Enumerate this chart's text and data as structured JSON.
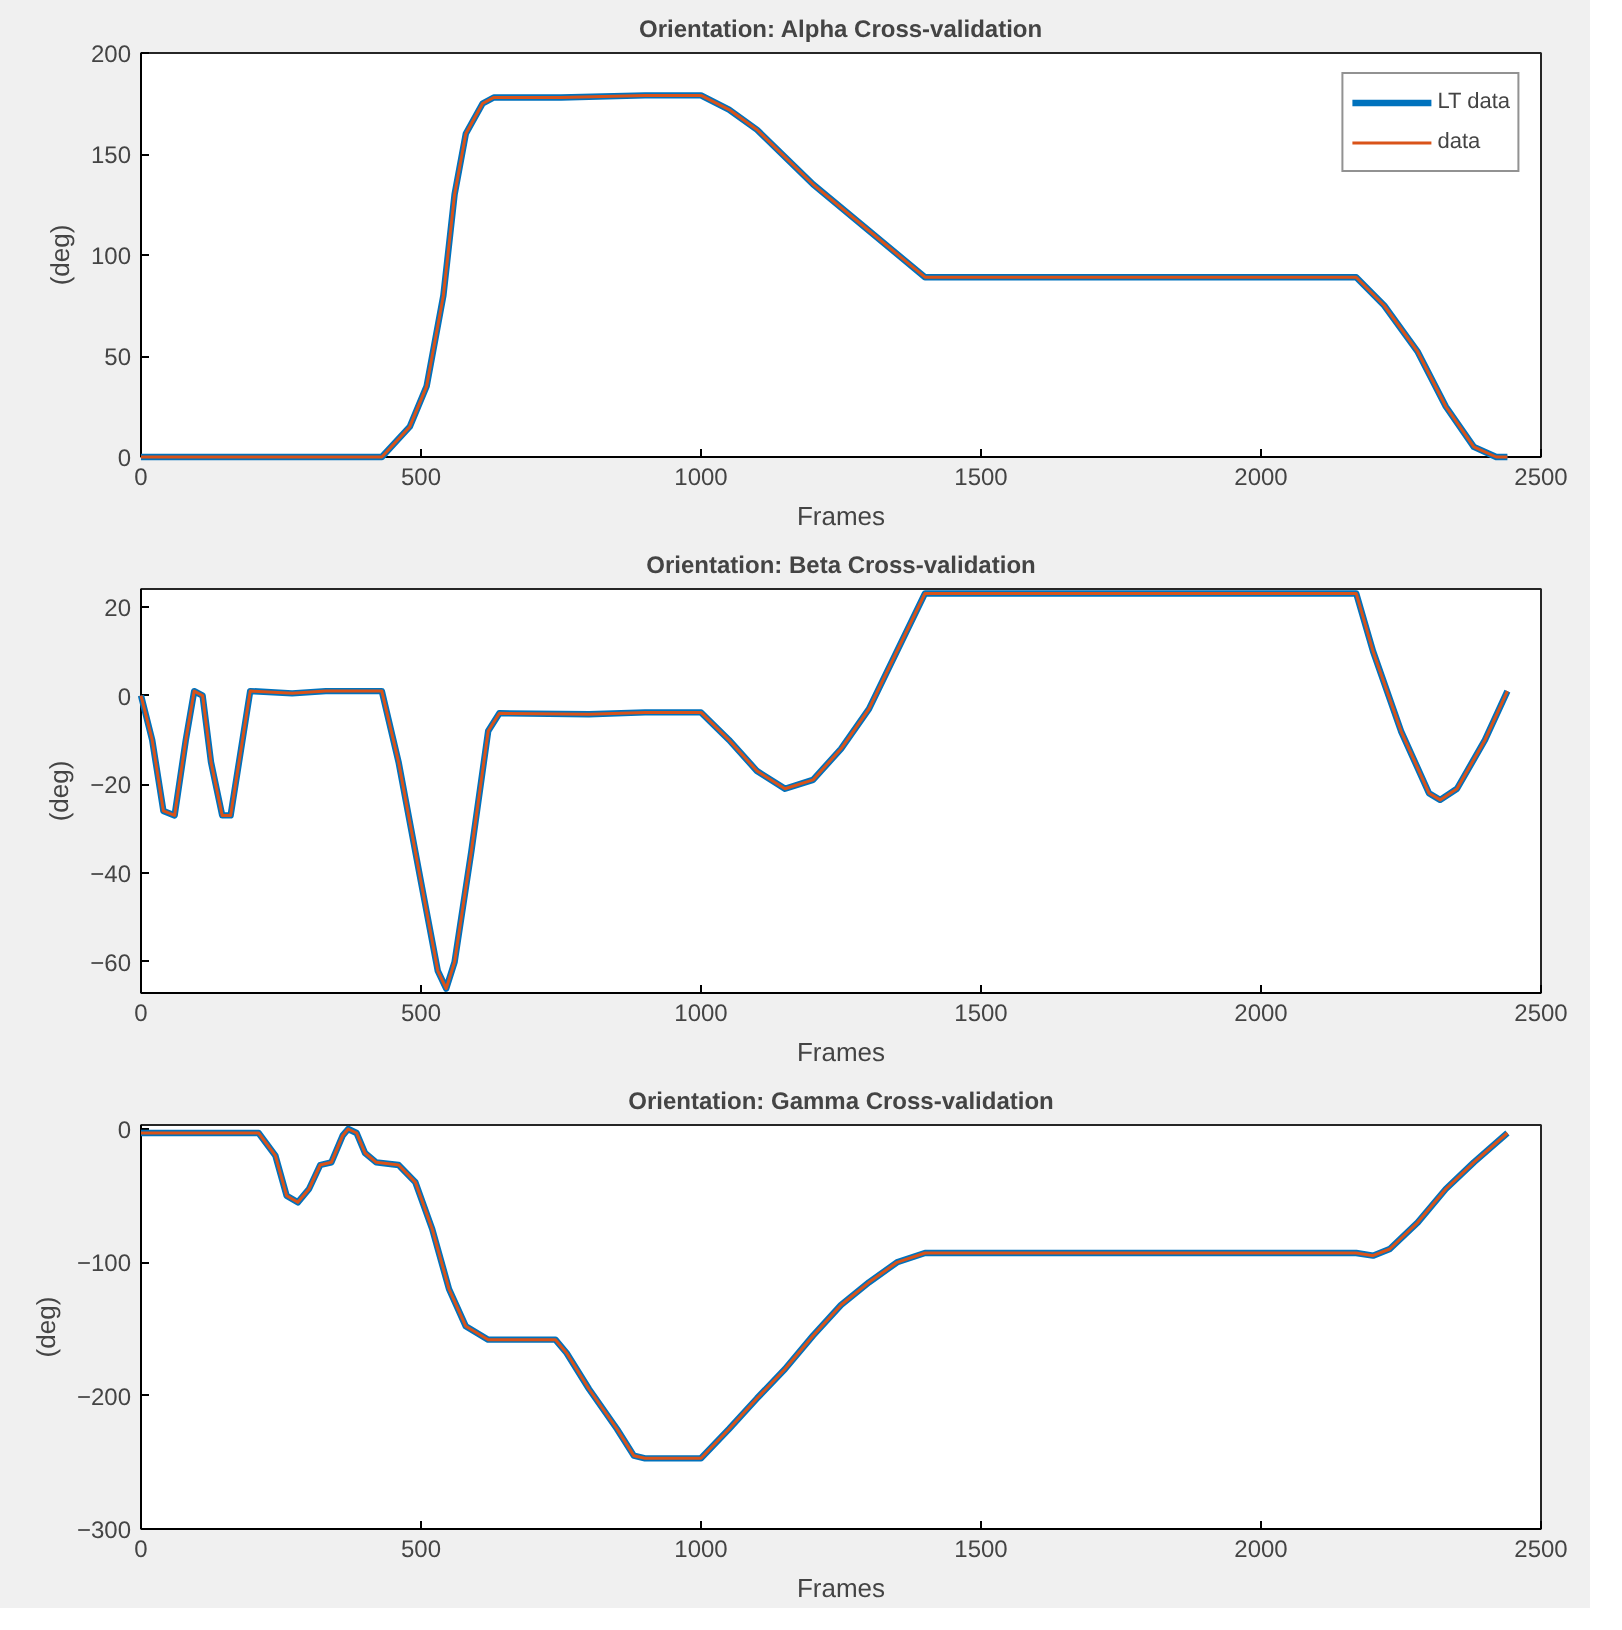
{
  "chart_data": [
    {
      "type": "line",
      "title": "Orientation: Alpha Cross-validation",
      "xlabel": "Frames",
      "ylabel": "(deg)",
      "xlim": [
        0,
        2500
      ],
      "xticks": [
        0,
        500,
        1000,
        1500,
        2000,
        2500
      ],
      "ylim": [
        0,
        200
      ],
      "yticks": [
        0,
        50,
        100,
        150,
        200
      ],
      "grid": false,
      "legend": "top right",
      "x": [
        0,
        50,
        150,
        270,
        380,
        430,
        480,
        510,
        540,
        560,
        580,
        610,
        630,
        750,
        900,
        1000,
        1050,
        1100,
        1200,
        1300,
        1400,
        1600,
        1800,
        2000,
        2170,
        2220,
        2280,
        2330,
        2380,
        2420,
        2440
      ],
      "series": [
        {
          "name": "LT data",
          "color": "#0072bd",
          "values": [
            0,
            0,
            0,
            0,
            0,
            0,
            15,
            35,
            80,
            130,
            160,
            175,
            178,
            178,
            179,
            179,
            172,
            162,
            135,
            112,
            89,
            89,
            89,
            89,
            89,
            75,
            52,
            25,
            5,
            0,
            0
          ]
        },
        {
          "name": "data",
          "color": "#d95319",
          "values": [
            0,
            0,
            0,
            0,
            0,
            0,
            15,
            35,
            80,
            130,
            160,
            175,
            178,
            178,
            179,
            179,
            172,
            162,
            135,
            112,
            89,
            89,
            89,
            89,
            89,
            75,
            52,
            25,
            5,
            0,
            0
          ]
        }
      ]
    },
    {
      "type": "line",
      "title": "Orientation: Beta Cross-validation",
      "xlabel": "Frames",
      "ylabel": "(deg)",
      "xlim": [
        0,
        2500
      ],
      "xticks": [
        0,
        500,
        1000,
        1500,
        2000,
        2500
      ],
      "ylim": [
        -67,
        24
      ],
      "yticks": [
        -60,
        -40,
        -20,
        0,
        20
      ],
      "grid": false,
      "x": [
        0,
        20,
        40,
        60,
        80,
        95,
        110,
        125,
        145,
        160,
        175,
        195,
        270,
        330,
        430,
        460,
        500,
        530,
        545,
        560,
        590,
        620,
        640,
        800,
        900,
        1000,
        1050,
        1100,
        1150,
        1200,
        1250,
        1300,
        1350,
        1400,
        1600,
        1800,
        2000,
        2170,
        2200,
        2250,
        2300,
        2320,
        2350,
        2400,
        2440
      ],
      "series": [
        {
          "color": "#0072bd",
          "values": [
            0,
            -10,
            -26,
            -27,
            -10,
            1,
            0,
            -15,
            -27,
            -27,
            -15,
            1,
            0.5,
            1,
            1,
            -15,
            -42,
            -62,
            -66,
            -60,
            -35,
            -8,
            -4,
            -4.2,
            -3.8,
            -3.8,
            -10,
            -17,
            -21,
            -19,
            -12,
            -3,
            10,
            23,
            23,
            23,
            23,
            23,
            10,
            -8,
            -22,
            -23.5,
            -21,
            -10,
            1
          ]
        },
        {
          "color": "#d95319",
          "values": [
            0,
            -10,
            -26,
            -27,
            -10,
            1,
            0,
            -15,
            -27,
            -27,
            -15,
            1,
            0.5,
            1,
            1,
            -15,
            -42,
            -62,
            -66,
            -60,
            -35,
            -8,
            -4,
            -4.2,
            -3.8,
            -3.8,
            -10,
            -17,
            -21,
            -19,
            -12,
            -3,
            10,
            23,
            23,
            23,
            23,
            23,
            10,
            -8,
            -22,
            -23.5,
            -21,
            -10,
            1
          ]
        }
      ]
    },
    {
      "type": "line",
      "title": "Orientation: Gamma Cross-validation",
      "xlabel": "Frames",
      "ylabel": "(deg)",
      "xlim": [
        0,
        2500
      ],
      "xticks": [
        0,
        500,
        1000,
        1500,
        2000,
        2500
      ],
      "ylim": [
        -300,
        3
      ],
      "yticks": [
        -300,
        -200,
        -100,
        0
      ],
      "grid": false,
      "x": [
        0,
        100,
        210,
        240,
        260,
        280,
        300,
        320,
        340,
        360,
        370,
        385,
        400,
        420,
        460,
        490,
        520,
        550,
        580,
        620,
        700,
        740,
        760,
        800,
        850,
        880,
        900,
        1000,
        1050,
        1100,
        1150,
        1200,
        1250,
        1300,
        1350,
        1400,
        1600,
        1800,
        2000,
        2170,
        2200,
        2230,
        2280,
        2330,
        2380,
        2440
      ],
      "series": [
        {
          "color": "#0072bd",
          "values": [
            -3,
            -3,
            -3,
            -20,
            -50,
            -55,
            -45,
            -27,
            -25,
            -5,
            0,
            -3,
            -18,
            -25,
            -27,
            -40,
            -75,
            -120,
            -148,
            -158,
            -158,
            -158,
            -168,
            -195,
            -225,
            -245,
            -247,
            -247,
            -225,
            -202,
            -180,
            -155,
            -132,
            -115,
            -100,
            -93,
            -93,
            -93,
            -93,
            -93,
            -95,
            -90,
            -70,
            -45,
            -25,
            -3
          ]
        },
        {
          "color": "#d95319",
          "values": [
            -3,
            -3,
            -3,
            -20,
            -50,
            -55,
            -45,
            -27,
            -25,
            -5,
            0,
            -3,
            -18,
            -25,
            -27,
            -40,
            -75,
            -120,
            -148,
            -158,
            -158,
            -158,
            -168,
            -195,
            -225,
            -245,
            -247,
            -247,
            -225,
            -202,
            -180,
            -155,
            -132,
            -115,
            -100,
            -93,
            -93,
            -93,
            -93,
            -93,
            -95,
            -90,
            -70,
            -45,
            -25,
            -3
          ]
        }
      ]
    }
  ]
}
